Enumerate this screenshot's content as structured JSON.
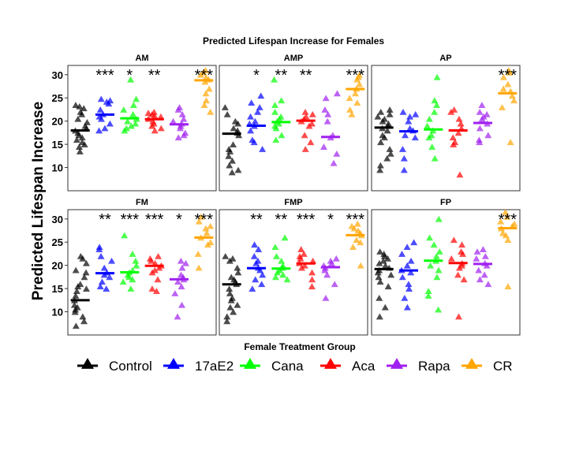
{
  "chart_data": {
    "type": "scatter",
    "title": "Predicted Lifespan Increase for Females",
    "ylabel": "Predicted Lifespan Increase",
    "xlabel": "Female Treatment Group",
    "ylim": [
      5,
      32
    ],
    "yticks": [
      10,
      15,
      20,
      25,
      30
    ],
    "grid": false,
    "legend_position": "bottom",
    "groups": [
      "Control",
      "17aE2",
      "Cana",
      "Aca",
      "Rapa",
      "CR"
    ],
    "colors": {
      "Control": "#000000",
      "17aE2": "#0000ff",
      "Cana": "#00ff00",
      "Aca": "#ff0000",
      "Rapa": "#a020f0",
      "CR": "#ffa500"
    },
    "panels": [
      {
        "label": "AM",
        "groups": [
          {
            "name": "Control",
            "median": 18.0,
            "signif": "",
            "values": [
              23.5,
              23.2,
              22.8,
              22.0,
              21.5,
              20.5,
              19.8,
              19.0,
              18.5,
              18.0,
              17.5,
              17.0,
              16.5,
              16.0,
              15.5,
              15.0,
              14.5,
              13.5
            ]
          },
          {
            "name": "17aE2",
            "median": 21.4,
            "signif": "***",
            "values": [
              24.8,
              24.5,
              24.2,
              23.8,
              22.5,
              21.5,
              21.0,
              20.5,
              19.5,
              18.5,
              18.0
            ]
          },
          {
            "name": "Cana",
            "median": 20.6,
            "signif": "*",
            "values": [
              29.0,
              24.8,
              23.5,
              22.5,
              21.5,
              20.5,
              20.0,
              19.5,
              19.0,
              18.5,
              18.0
            ]
          },
          {
            "name": "Aca",
            "median": 20.4,
            "signif": "**",
            "values": [
              22.0,
              21.8,
              21.5,
              21.2,
              21.0,
              20.5,
              20.0,
              19.5,
              19.0,
              18.5,
              18.0
            ]
          },
          {
            "name": "Rapa",
            "median": 19.3,
            "signif": "",
            "values": [
              23.0,
              22.5,
              21.5,
              20.5,
              20.0,
              19.5,
              19.0,
              18.5,
              17.5,
              17.0,
              16.5
            ]
          },
          {
            "name": "CR",
            "median": 28.8,
            "signif": "***",
            "values": [
              31.0,
              30.5,
              30.0,
              29.5,
              29.0,
              28.5,
              27.0,
              26.0,
              24.5,
              23.5,
              22.0
            ]
          }
        ]
      },
      {
        "label": "AMP",
        "groups": [
          {
            "name": "Control",
            "median": 17.3,
            "signif": "",
            "values": [
              23.0,
              21.5,
              20.0,
              19.5,
              18.5,
              18.0,
              17.5,
              17.0,
              15.0,
              14.0,
              13.5,
              12.5,
              11.5,
              10.5,
              9.5,
              9.0
            ]
          },
          {
            "name": "17aE2",
            "median": 19.0,
            "signif": "*",
            "values": [
              25.5,
              24.0,
              23.0,
              22.0,
              21.0,
              20.0,
              19.5,
              19.0,
              18.0,
              16.0,
              15.5,
              14.0
            ]
          },
          {
            "name": "Cana",
            "median": 19.8,
            "signif": "**",
            "values": [
              29.0,
              24.5,
              23.5,
              22.0,
              21.0,
              20.5,
              20.0,
              19.5,
              19.0,
              18.5,
              17.0,
              16.0
            ]
          },
          {
            "name": "Aca",
            "median": 20.1,
            "signif": "**",
            "values": [
              22.0,
              21.5,
              21.0,
              20.5,
              20.0,
              19.5,
              19.0,
              17.0,
              15.5,
              14.0
            ]
          },
          {
            "name": "Rapa",
            "median": 16.6,
            "signif": "",
            "values": [
              26.0,
              25.0,
              22.5,
              21.5,
              20.0,
              17.0,
              16.5,
              14.5,
              13.0,
              11.0
            ]
          },
          {
            "name": "CR",
            "median": 26.9,
            "signif": "***",
            "values": [
              30.0,
              29.5,
              29.0,
              28.0,
              27.0,
              26.0,
              25.0,
              24.0,
              22.5,
              21.5
            ]
          }
        ]
      },
      {
        "label": "AP",
        "groups": [
          {
            "name": "Control",
            "median": 18.6,
            "signif": "",
            "values": [
              22.5,
              22.0,
              21.5,
              21.0,
              20.5,
              20.0,
              19.5,
              19.0,
              18.5,
              18.0,
              17.0,
              16.5,
              15.5,
              14.0,
              13.0,
              12.0,
              10.5,
              9.5
            ]
          },
          {
            "name": "17aE2",
            "median": 17.8,
            "signif": "",
            "values": [
              22.0,
              21.5,
              21.0,
              20.0,
              18.5,
              18.0,
              17.0,
              16.5,
              14.0,
              12.0,
              9.5
            ]
          },
          {
            "name": "Cana",
            "median": 18.2,
            "signif": "",
            "values": [
              29.5,
              24.5,
              23.5,
              22.0,
              20.5,
              19.0,
              18.0,
              17.0,
              16.5,
              14.5,
              12.0
            ]
          },
          {
            "name": "Aca",
            "median": 18.0,
            "signif": "",
            "values": [
              22.5,
              22.0,
              20.5,
              19.5,
              18.5,
              17.5,
              16.5,
              15.5,
              15.0,
              8.5
            ]
          },
          {
            "name": "Rapa",
            "median": 19.6,
            "signif": "",
            "values": [
              23.5,
              22.0,
              21.5,
              21.0,
              20.5,
              19.5,
              18.5,
              17.0,
              16.0,
              15.5
            ]
          },
          {
            "name": "CR",
            "median": 26.0,
            "signif": "***",
            "values": [
              31.0,
              30.5,
              29.5,
              28.0,
              27.0,
              26.5,
              25.5,
              24.5,
              23.0,
              15.5
            ]
          }
        ]
      },
      {
        "label": "FM",
        "groups": [
          {
            "name": "Control",
            "median": 12.5,
            "signif": "",
            "values": [
              22.0,
              21.5,
              20.5,
              19.0,
              18.5,
              17.5,
              16.0,
              15.5,
              15.0,
              14.5,
              13.5,
              12.5,
              11.5,
              11.0,
              10.5,
              10.0,
              9.0,
              8.0,
              7.0
            ]
          },
          {
            "name": "17aE2",
            "median": 18.3,
            "signif": "**",
            "values": [
              24.0,
              23.5,
              22.0,
              21.0,
              19.5,
              18.5,
              18.0,
              17.5,
              16.5,
              15.5,
              15.0
            ]
          },
          {
            "name": "Cana",
            "median": 18.5,
            "signif": "***",
            "values": [
              26.5,
              22.5,
              21.0,
              20.0,
              19.0,
              18.5,
              18.0,
              17.5,
              17.0,
              16.5,
              15.0
            ]
          },
          {
            "name": "Aca",
            "median": 19.9,
            "signif": "***",
            "values": [
              22.0,
              21.5,
              21.0,
              20.5,
              20.0,
              19.5,
              19.0,
              18.5,
              17.0,
              15.0,
              14.5
            ]
          },
          {
            "name": "Rapa",
            "median": 17.0,
            "signif": "*",
            "values": [
              21.0,
              20.5,
              19.5,
              18.0,
              17.5,
              17.0,
              16.5,
              15.5,
              14.0,
              11.5,
              9.0
            ]
          },
          {
            "name": "CR",
            "median": 26.0,
            "signif": "***",
            "values": [
              30.5,
              29.5,
              28.5,
              28.0,
              27.0,
              26.0,
              25.0,
              24.5,
              22.5,
              19.5
            ]
          }
        ]
      },
      {
        "label": "FMP",
        "groups": [
          {
            "name": "Control",
            "median": 15.9,
            "signif": "",
            "values": [
              22.0,
              21.5,
              21.0,
              19.5,
              18.5,
              17.5,
              17.0,
              16.5,
              16.0,
              15.0,
              14.0,
              13.0,
              12.5,
              11.5,
              11.0,
              10.0,
              9.0,
              8.0
            ]
          },
          {
            "name": "17aE2",
            "median": 19.4,
            "signif": "**",
            "values": [
              24.5,
              23.5,
              22.0,
              21.0,
              20.5,
              19.5,
              19.0,
              18.0,
              17.0,
              16.0,
              15.0
            ]
          },
          {
            "name": "Cana",
            "median": 19.3,
            "signif": "**",
            "values": [
              26.0,
              24.0,
              22.0,
              21.0,
              20.0,
              19.5,
              19.0,
              18.5,
              18.0,
              17.5,
              17.0
            ]
          },
          {
            "name": "Aca",
            "median": 20.4,
            "signif": "***",
            "values": [
              23.5,
              22.5,
              22.0,
              21.5,
              21.0,
              20.5,
              20.0,
              19.5,
              18.5,
              17.0,
              15.5
            ]
          },
          {
            "name": "Rapa",
            "median": 19.6,
            "signif": "*",
            "values": [
              21.5,
              21.0,
              20.5,
              20.0,
              19.5,
              19.0,
              18.0,
              16.0,
              13.0
            ]
          },
          {
            "name": "CR",
            "median": 26.5,
            "signif": "***",
            "values": [
              29.0,
              28.5,
              28.0,
              27.5,
              27.0,
              26.5,
              25.5,
              25.0,
              24.0,
              20.0
            ]
          }
        ]
      },
      {
        "label": "FP",
        "groups": [
          {
            "name": "Control",
            "median": 19.2,
            "signif": "",
            "values": [
              23.0,
              22.5,
              22.0,
              21.5,
              21.0,
              20.5,
              20.0,
              19.5,
              19.0,
              18.5,
              18.0,
              17.5,
              16.5,
              15.5,
              13.0,
              11.0,
              9.0
            ]
          },
          {
            "name": "17aE2",
            "median": 18.9,
            "signif": "",
            "values": [
              25.0,
              24.0,
              22.5,
              21.0,
              20.0,
              19.0,
              18.5,
              17.5,
              16.0,
              15.0,
              13.0,
              11.0
            ]
          },
          {
            "name": "Cana",
            "median": 21.0,
            "signif": "",
            "values": [
              30.0,
              26.0,
              24.5,
              23.0,
              22.0,
              21.0,
              20.0,
              19.0,
              17.5,
              14.5,
              13.5,
              10.5
            ]
          },
          {
            "name": "Aca",
            "median": 20.5,
            "signif": "",
            "values": [
              25.5,
              24.5,
              23.0,
              22.5,
              21.5,
              20.5,
              20.0,
              19.5,
              18.0,
              17.0,
              9.0
            ]
          },
          {
            "name": "Rapa",
            "median": 20.3,
            "signif": "",
            "values": [
              23.5,
              23.0,
              22.0,
              21.5,
              20.5,
              20.0,
              19.0,
              18.0,
              17.0,
              16.0
            ]
          },
          {
            "name": "CR",
            "median": 28.0,
            "signif": "***",
            "values": [
              31.5,
              30.5,
              29.5,
              29.0,
              28.5,
              28.0,
              27.0,
              26.5,
              25.5,
              15.5
            ]
          }
        ]
      }
    ]
  }
}
